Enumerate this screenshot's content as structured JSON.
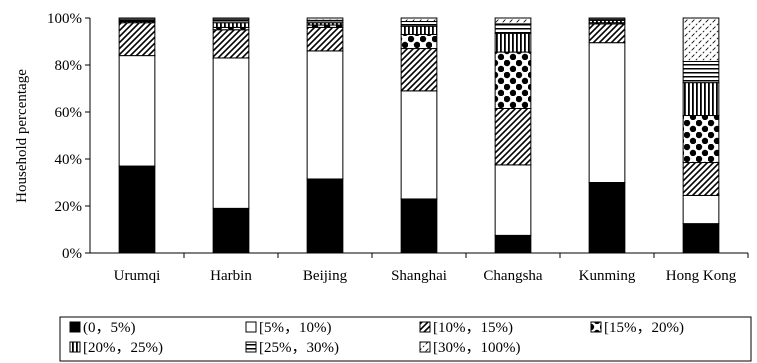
{
  "chart_data": {
    "type": "bar",
    "stacked": true,
    "title": "",
    "xlabel": "",
    "ylabel": "Household percentage",
    "ylim": [
      0,
      100
    ],
    "y_ticks": [
      "0%",
      "20%",
      "40%",
      "60%",
      "80%",
      "100%"
    ],
    "categories": [
      "Urumqi",
      "Harbin",
      "Beijing",
      "Shanghai",
      "Changsha",
      "Kunming",
      "Hong Kong"
    ],
    "series": [
      {
        "name": "(0，5%)",
        "pattern": "solid",
        "values": [
          37,
          19,
          31.5,
          23,
          7.5,
          30,
          12.5
        ]
      },
      {
        "name": "[5%，10%)",
        "pattern": "white",
        "values": [
          47,
          64,
          54.5,
          46,
          30,
          59.5,
          12
        ]
      },
      {
        "name": "[10%，15%)",
        "pattern": "diag",
        "values": [
          14,
          12,
          10,
          18,
          24,
          8,
          14
        ]
      },
      {
        "name": "[15%，20%)",
        "pattern": "dots",
        "values": [
          0,
          1,
          1,
          6,
          24,
          0.5,
          20
        ]
      },
      {
        "name": "[20%，25%)",
        "pattern": "vlines",
        "values": [
          0.5,
          2,
          1,
          3.5,
          8,
          1,
          14
        ]
      },
      {
        "name": "[25%，30%)",
        "pattern": "hlines",
        "values": [
          1,
          1.5,
          1,
          2,
          4,
          0.5,
          9
        ]
      },
      {
        "name": "[30%，100%)",
        "pattern": "fdiag",
        "values": [
          0.5,
          0.5,
          1,
          1.5,
          2.5,
          0.5,
          18.5
        ]
      }
    ],
    "legend_position": "bottom",
    "grid": false
  }
}
